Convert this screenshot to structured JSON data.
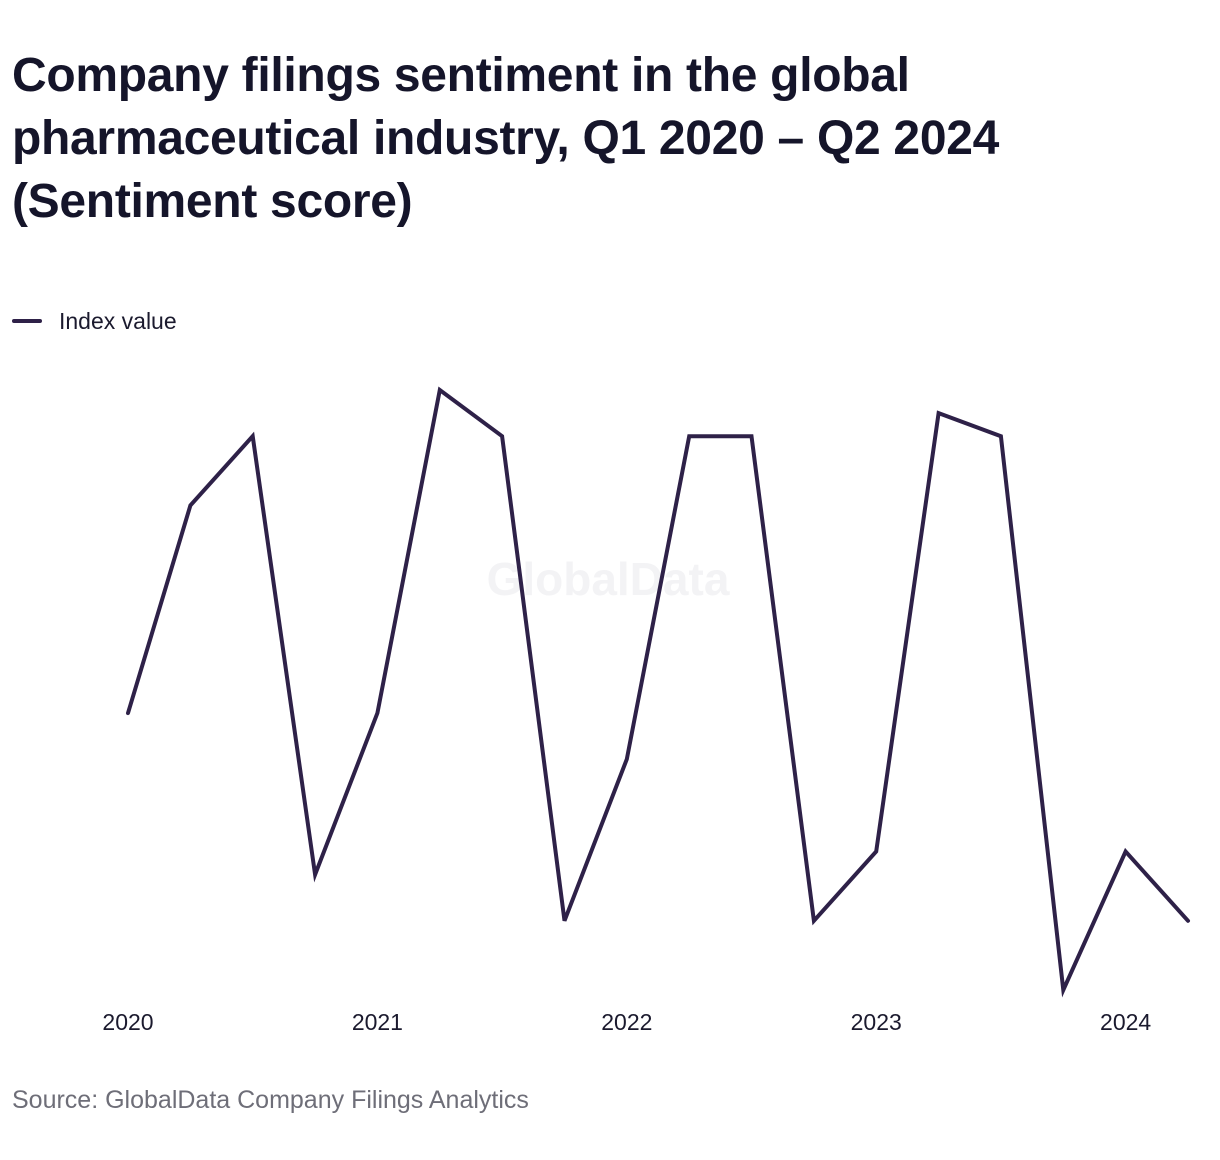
{
  "title": "Company filings sentiment in the global pharmaceutical industry, Q1 2020 – Q2 2024 (Sentiment score)",
  "source": "Source: GlobalData Company Filings Analytics",
  "watermark": "GlobalData",
  "colors": {
    "series": "#2e2148",
    "title": "#15152a",
    "source": "#6e6e78",
    "watermark": "#f3f3f5"
  },
  "chart_data": {
    "type": "line",
    "title": "Company filings sentiment in the global pharmaceutical industry, Q1 2020 – Q2 2024 (Sentiment score)",
    "xlabel": "",
    "ylabel": "",
    "x_ticks": [
      "2020",
      "2021",
      "2022",
      "2023",
      "2024"
    ],
    "x": [
      "Q1 2020",
      "Q2 2020",
      "Q3 2020",
      "Q4 2020",
      "Q1 2021",
      "Q2 2021",
      "Q3 2021",
      "Q4 2021",
      "Q1 2022",
      "Q2 2022",
      "Q3 2022",
      "Q4 2022",
      "Q1 2023",
      "Q2 2023",
      "Q3 2023",
      "Q4 2023",
      "Q1 2024",
      "Q2 2024"
    ],
    "series": [
      {
        "name": "Index value",
        "values": [
          0.11,
          0.2,
          0.23,
          0.04,
          0.11,
          0.25,
          0.23,
          0.02,
          0.09,
          0.23,
          0.23,
          0.02,
          0.05,
          0.24,
          0.23,
          -0.01,
          0.05,
          0.02
        ]
      }
    ],
    "grid": false,
    "legend": "top-left",
    "y_axis_visible": false
  }
}
